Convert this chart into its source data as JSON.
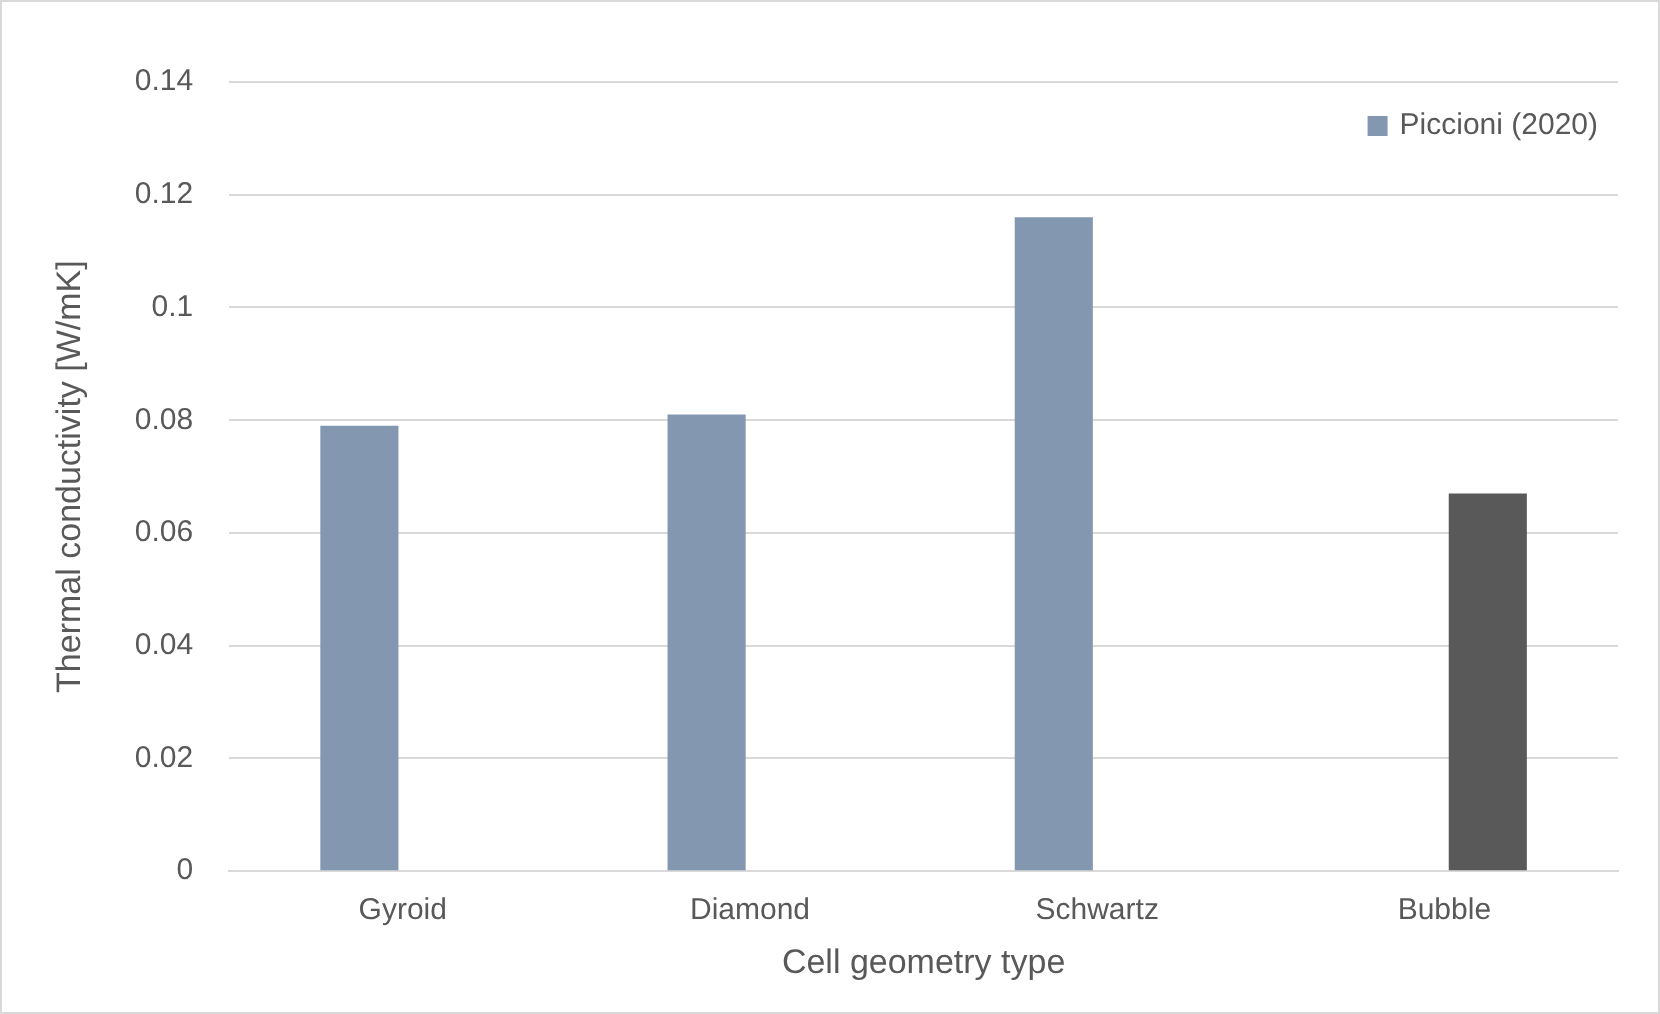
{
  "chart_data": {
    "type": "bar",
    "xlabel": "Cell geometry type",
    "ylabel": "Thermal conductivity [W/mK]",
    "categories": [
      "Gyroid",
      "Diamond",
      "Schwartz",
      "Bubble"
    ],
    "series": [
      {
        "name": "Piccioni (2020)",
        "color": "#8497b0",
        "values": [
          0.079,
          0.081,
          0.116,
          null
        ]
      },
      {
        "color": "#595959",
        "values": [
          null,
          null,
          null,
          0.067
        ]
      }
    ],
    "ylim": [
      0,
      0.14
    ],
    "yticks": [
      0,
      0.02,
      0.04,
      0.06,
      0.08,
      0.1,
      0.12,
      0.14
    ],
    "grid": "y",
    "legend": "top right"
  }
}
